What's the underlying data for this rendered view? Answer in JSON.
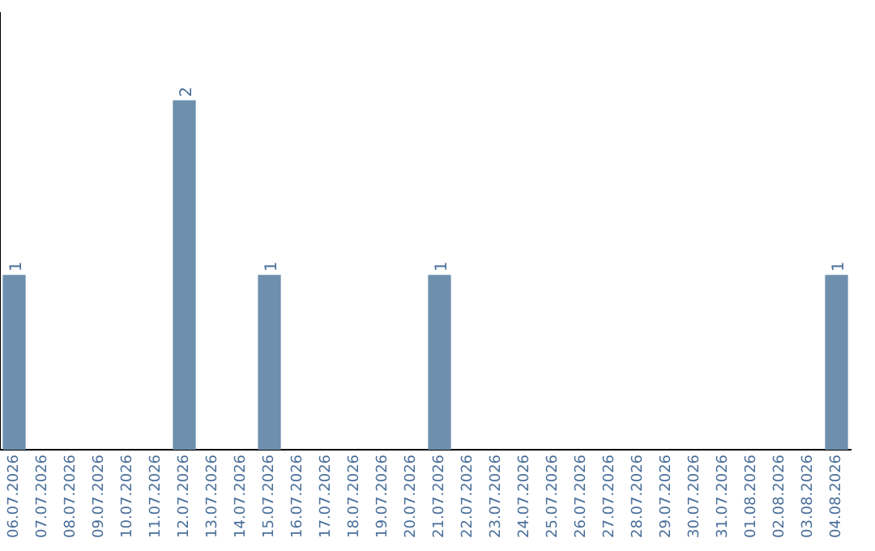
{
  "chart_data": {
    "type": "bar",
    "categories": [
      "06.07.2026",
      "07.07.2026",
      "08.07.2026",
      "09.07.2026",
      "10.07.2026",
      "11.07.2026",
      "12.07.2026",
      "13.07.2026",
      "14.07.2026",
      "15.07.2026",
      "16.07.2026",
      "17.07.2026",
      "18.07.2026",
      "19.07.2026",
      "20.07.2026",
      "21.07.2026",
      "22.07.2026",
      "23.07.2026",
      "24.07.2026",
      "25.07.2026",
      "26.07.2026",
      "27.07.2026",
      "28.07.2026",
      "29.07.2026",
      "30.07.2026",
      "31.07.2026",
      "01.08.2026",
      "02.08.2026",
      "03.08.2026",
      "04.08.2026"
    ],
    "values": [
      1,
      0,
      0,
      0,
      0,
      0,
      2,
      0,
      0,
      1,
      0,
      0,
      0,
      0,
      0,
      1,
      0,
      0,
      0,
      0,
      0,
      0,
      0,
      0,
      0,
      0,
      0,
      0,
      0,
      1
    ],
    "value_labels": [
      "1",
      null,
      null,
      null,
      null,
      null,
      "2",
      null,
      null,
      "1",
      null,
      null,
      null,
      null,
      null,
      "1",
      null,
      null,
      null,
      null,
      null,
      null,
      null,
      null,
      null,
      null,
      null,
      null,
      null,
      "1"
    ],
    "color": "#6e8fad",
    "grid": false,
    "legend": false,
    "tick_labels": "x"
  }
}
